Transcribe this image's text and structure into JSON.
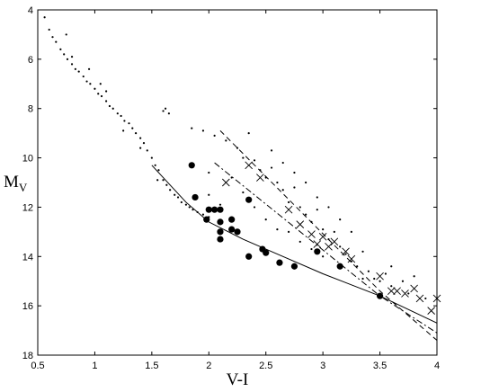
{
  "chart_data": {
    "type": "scatter",
    "xlabel": "V-I",
    "ylabel": "M",
    "ylabel_sub": "V",
    "xlim": [
      0.5,
      4
    ],
    "ylim": [
      18,
      4
    ],
    "y_inverted": true,
    "xticks": [
      0.5,
      1,
      1.5,
      2,
      2.5,
      3,
      3.5,
      4
    ],
    "yticks": [
      4,
      6,
      8,
      10,
      12,
      14,
      16,
      18
    ],
    "series": [
      {
        "marker": "dot",
        "color": "#000",
        "x": [
          0.56,
          0.6,
          0.63,
          0.66,
          0.7,
          0.73,
          0.76,
          0.8,
          0.83,
          0.86,
          0.9,
          0.93,
          0.96,
          1.0,
          1.03,
          1.06,
          1.1,
          1.13,
          1.16,
          1.2,
          1.23,
          1.26,
          1.3,
          1.33,
          1.36,
          1.4,
          1.43,
          1.46,
          1.5,
          1.53,
          1.56,
          1.6,
          1.63,
          1.66,
          1.7,
          1.73,
          1.76,
          1.8,
          1.83,
          1.86,
          1.9,
          1.95,
          2.0,
          0.8,
          0.95,
          1.1,
          1.25,
          1.4,
          0.75,
          1.05,
          1.55,
          1.62,
          1.65,
          1.6
        ],
        "values": [
          4.3,
          4.8,
          5.1,
          5.3,
          5.6,
          5.8,
          6.0,
          6.2,
          6.4,
          6.5,
          6.7,
          6.9,
          7.0,
          7.2,
          7.4,
          7.5,
          7.7,
          7.9,
          8.0,
          8.2,
          8.3,
          8.5,
          8.6,
          8.8,
          9.0,
          9.2,
          9.4,
          9.7,
          10.0,
          10.3,
          10.5,
          10.9,
          11.1,
          11.3,
          11.5,
          11.6,
          11.8,
          11.9,
          12.0,
          12.1,
          12.2,
          12.3,
          12.4,
          5.9,
          6.4,
          7.3,
          8.9,
          9.6,
          5.0,
          7.0,
          10.9,
          8.0,
          8.2,
          8.1
        ]
      },
      {
        "marker": "dot",
        "color": "#000",
        "x": [
          1.85,
          1.95,
          2.05,
          2.15,
          2.25,
          2.3,
          2.4,
          2.45,
          2.5,
          2.55,
          2.6,
          2.65,
          2.7,
          2.75,
          2.8,
          2.85,
          2.9,
          2.95,
          3.0,
          3.05,
          3.1,
          3.15,
          3.2,
          3.25,
          3.3,
          3.35,
          3.4,
          3.45,
          3.5,
          3.55,
          3.6,
          3.7,
          3.8,
          3.9,
          2.2,
          2.3,
          2.4,
          2.5,
          2.6,
          2.7,
          2.8,
          2.9,
          2.55,
          2.65,
          2.75,
          2.85,
          2.95,
          3.05,
          3.15,
          3.25,
          2.0,
          2.1,
          3.35,
          3.0,
          2.35,
          3.6,
          3.75,
          2.0
        ],
        "values": [
          8.8,
          8.9,
          9.1,
          9.3,
          9.6,
          10.0,
          10.1,
          10.5,
          10.8,
          10.4,
          11.0,
          11.3,
          11.8,
          11.2,
          12.0,
          12.3,
          12.6,
          12.1,
          12.9,
          13.3,
          13.0,
          13.6,
          13.9,
          14.2,
          14.4,
          13.8,
          14.6,
          14.9,
          15.0,
          14.7,
          15.2,
          15.0,
          14.8,
          15.7,
          10.8,
          11.4,
          12.0,
          12.5,
          12.9,
          13.0,
          13.4,
          13.7,
          9.7,
          10.2,
          10.6,
          11.0,
          11.6,
          12.0,
          12.5,
          13.0,
          11.5,
          11.9,
          14.9,
          14.0,
          9.0,
          14.4,
          15.5,
          10.6
        ]
      },
      {
        "marker": "circle",
        "color": "#000",
        "x": [
          1.85,
          1.88,
          2.0,
          2.05,
          2.1,
          1.98,
          2.1,
          2.1,
          2.2,
          2.2,
          2.25,
          2.1,
          2.35,
          2.35,
          2.47,
          2.5,
          2.62,
          2.75,
          2.95,
          3.15,
          3.5
        ],
        "values": [
          10.3,
          11.6,
          12.1,
          12.1,
          12.1,
          12.5,
          12.6,
          13.0,
          12.5,
          12.9,
          13.0,
          13.3,
          11.7,
          14.0,
          13.7,
          13.85,
          14.25,
          14.4,
          13.8,
          14.4,
          15.6
        ]
      },
      {
        "marker": "cross",
        "color": "#000",
        "x": [
          2.15,
          2.35,
          2.45,
          2.7,
          2.8,
          2.9,
          2.95,
          3.0,
          3.05,
          3.1,
          3.2,
          3.25,
          3.5,
          3.6,
          3.65,
          3.8,
          3.85,
          3.95,
          4.0,
          3.72
        ],
        "values": [
          11.0,
          10.3,
          10.8,
          12.1,
          12.7,
          13.1,
          13.5,
          13.2,
          13.6,
          13.4,
          13.8,
          14.1,
          14.8,
          15.4,
          15.4,
          15.3,
          15.7,
          16.2,
          15.7,
          15.5
        ]
      },
      {
        "marker": "none",
        "line": "solid",
        "color": "#000",
        "x": [
          1.5,
          1.8,
          2.0,
          2.3,
          2.6,
          3.0,
          3.5,
          4.0
        ],
        "values": [
          10.3,
          11.8,
          12.6,
          13.3,
          13.9,
          14.7,
          15.6,
          16.7
        ]
      },
      {
        "marker": "none",
        "line": "dashed",
        "color": "#000",
        "x": [
          2.1,
          3.5,
          4.0
        ],
        "values": [
          8.9,
          15.4,
          17.4
        ]
      },
      {
        "marker": "none",
        "line": "dashdot",
        "color": "#000",
        "x": [
          2.05,
          3.5,
          4.0
        ],
        "values": [
          10.2,
          15.6,
          17.1
        ]
      }
    ]
  }
}
